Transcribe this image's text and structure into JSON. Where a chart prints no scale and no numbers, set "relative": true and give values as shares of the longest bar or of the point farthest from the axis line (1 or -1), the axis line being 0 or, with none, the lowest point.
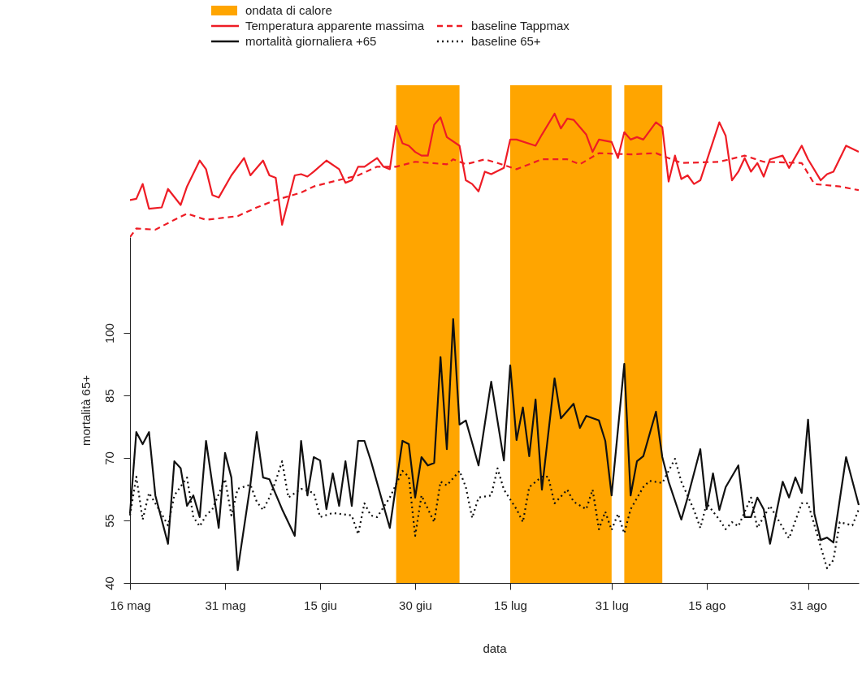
{
  "chart_data": [
    {
      "type": "line",
      "relative": true,
      "legend": "top",
      "tick_labels": false,
      "xlim": [
        "--05-16",
        "--09-08"
      ],
      "bands": [
        {
          "axis": "x",
          "from": "--06-27",
          "to": "--07-07",
          "color": "#ffa500"
        },
        {
          "axis": "x",
          "from": "--07-15",
          "to": "--07-31",
          "color": "#ffa500"
        },
        {
          "axis": "x",
          "from": "--08-02",
          "to": "--08-08",
          "color": "#ffa500"
        }
      ],
      "series": [
        {
          "name": "Temperatura apparente massima",
          "color": "#ee1c25",
          "line_style": "solid",
          "x": [
            "--05-16",
            "--05-17",
            "--05-18",
            "--05-19",
            "--05-21",
            "--05-22",
            "--05-24",
            "--05-25",
            "--05-27",
            "--05-28",
            "--05-29",
            "--05-30",
            "--06-01",
            "--06-03",
            "--06-04",
            "--06-06",
            "--06-07",
            "--06-08",
            "--06-09",
            "--06-11",
            "--06-12",
            "--06-13",
            "--06-14",
            "--06-16",
            "--06-18",
            "--06-19",
            "--06-20",
            "--06-21",
            "--06-22",
            "--06-24",
            "--06-25",
            "--06-26",
            "--06-27",
            "--06-28",
            "--06-29",
            "--06-30",
            "--07-01",
            "--07-02",
            "--07-03",
            "--07-04",
            "--07-05",
            "--07-07",
            "--07-08",
            "--07-09",
            "--07-10",
            "--07-11",
            "--07-12",
            "--07-14",
            "--07-15",
            "--07-16",
            "--07-19",
            "--07-20",
            "--07-22",
            "--07-23",
            "--07-24",
            "--07-25",
            "--07-27",
            "--07-28",
            "--07-29",
            "--07-31",
            "--08-01",
            "--08-02",
            "--08-03",
            "--08-04",
            "--08-05",
            "--08-07",
            "--08-08",
            "--08-09",
            "--08-10",
            "--08-11",
            "--08-12",
            "--08-13",
            "--08-14",
            "--08-17",
            "--08-18",
            "--08-19",
            "--08-20",
            "--08-21",
            "--08-22",
            "--08-23",
            "--08-24",
            "--08-25",
            "--08-27",
            "--08-28",
            "--08-30",
            "--08-31",
            "--09-02",
            "--09-03",
            "--09-04",
            "--09-06",
            "--09-08"
          ],
          "values": [
            0.3,
            0.31,
            0.43,
            0.23,
            0.24,
            0.39,
            0.26,
            0.41,
            0.62,
            0.55,
            0.34,
            0.32,
            0.5,
            0.64,
            0.5,
            0.62,
            0.5,
            0.48,
            0.1,
            0.5,
            0.51,
            0.49,
            0.53,
            0.62,
            0.55,
            0.44,
            0.46,
            0.57,
            0.57,
            0.64,
            0.57,
            0.55,
            0.9,
            0.76,
            0.74,
            0.69,
            0.66,
            0.66,
            0.91,
            0.97,
            0.81,
            0.74,
            0.46,
            0.43,
            0.37,
            0.53,
            0.51,
            0.56,
            0.79,
            0.79,
            0.74,
            0.83,
            1,
            0.88,
            0.96,
            0.95,
            0.83,
            0.69,
            0.79,
            0.77,
            0.64,
            0.85,
            0.79,
            0.81,
            0.79,
            0.93,
            0.89,
            0.45,
            0.66,
            0.47,
            0.5,
            0.43,
            0.46,
            0.93,
            0.82,
            0.46,
            0.53,
            0.64,
            0.53,
            0.6,
            0.49,
            0.63,
            0.66,
            0.56,
            0.74,
            0.63,
            0.46,
            0.51,
            0.53,
            0.74,
            0.69
          ]
        },
        {
          "name": "baseline Tappmax",
          "color": "#ee1c25",
          "line_style": "dashed",
          "x": [
            "--05-16",
            "--05-17",
            "--05-20",
            "--05-23",
            "--05-25",
            "--05-28",
            "--06-02",
            "--06-05",
            "--06-08",
            "--06-12",
            "--06-14",
            "--06-17",
            "--06-21",
            "--06-24",
            "--06-27",
            "--06-30",
            "--07-05",
            "--07-06",
            "--07-08",
            "--07-11",
            "--07-13",
            "--07-16",
            "--07-20",
            "--07-24",
            "--07-26",
            "--07-29",
            "--08-03",
            "--08-07",
            "--08-11",
            "--08-17",
            "--08-21",
            "--08-24",
            "--08-30",
            "--09-01",
            "--09-05",
            "--09-08"
          ],
          "values": [
            0,
            0.07,
            0.06,
            0.14,
            0.19,
            0.14,
            0.17,
            0.24,
            0.3,
            0.36,
            0.41,
            0.45,
            0.5,
            0.57,
            0.57,
            0.61,
            0.59,
            0.63,
            0.59,
            0.63,
            0.6,
            0.55,
            0.63,
            0.63,
            0.59,
            0.68,
            0.67,
            0.68,
            0.6,
            0.61,
            0.66,
            0.61,
            0.6,
            0.43,
            0.41,
            0.38
          ]
        }
      ]
    },
    {
      "type": "line",
      "legend": "top",
      "xlabel": "data",
      "ylabel": "mortalità 65+",
      "xlim": [
        "--05-16",
        "--09-08"
      ],
      "ylim": [
        40,
        123
      ],
      "yticks": [
        40,
        55,
        70,
        85,
        100
      ],
      "xticks": [
        {
          "value": "--05-16",
          "label": "16 mag"
        },
        {
          "value": "--05-31",
          "label": "31 mag"
        },
        {
          "value": "--06-15",
          "label": "15 giu"
        },
        {
          "value": "--06-30",
          "label": "30 giu"
        },
        {
          "value": "--07-15",
          "label": "15 lug"
        },
        {
          "value": "--07-31",
          "label": "31 lug"
        },
        {
          "value": "--08-15",
          "label": "15 ago"
        },
        {
          "value": "--08-31",
          "label": "31 ago"
        }
      ],
      "bands": [
        {
          "axis": "x",
          "from": "--06-27",
          "to": "--07-07",
          "label": "ondata di calore",
          "color": "#ffa500"
        },
        {
          "axis": "x",
          "from": "--07-15",
          "to": "--07-31",
          "color": "#ffa500"
        },
        {
          "axis": "x",
          "from": "--08-02",
          "to": "--08-08",
          "color": "#ffa500"
        }
      ],
      "series": [
        {
          "name": "mortalità giornaliera +65",
          "color": "#111111",
          "line_style": "solid",
          "x": [
            "--05-16",
            "--05-17",
            "--05-18",
            "--05-19",
            "--05-20",
            "--05-22",
            "--05-23",
            "--05-24",
            "--05-25",
            "--05-26",
            "--05-27",
            "--05-28",
            "--05-30",
            "--05-31",
            "--06-01",
            "--06-02",
            "--06-04",
            "--06-05",
            "--06-06",
            "--06-07",
            "--06-09",
            "--06-11",
            "--06-12",
            "--06-13",
            "--06-14",
            "--06-15",
            "--06-16",
            "--06-17",
            "--06-18",
            "--06-19",
            "--06-20",
            "--06-21",
            "--06-22",
            "--06-23",
            "--06-26",
            "--06-28",
            "--06-29",
            "--06-30",
            "--07-01",
            "--07-02",
            "--07-03",
            "--07-04",
            "--07-05",
            "--07-06",
            "--07-07",
            "--07-08",
            "--07-10",
            "--07-12",
            "--07-14",
            "--07-15",
            "--07-16",
            "--07-17",
            "--07-18",
            "--07-19",
            "--07-20",
            "--07-22",
            "--07-23",
            "--07-25",
            "--07-26",
            "--07-27",
            "--07-29",
            "--07-30",
            "--07-31",
            "--08-02",
            "--08-03",
            "--08-04",
            "--08-05",
            "--08-07",
            "--08-08",
            "--08-09",
            "--08-11",
            "--08-12",
            "--08-14",
            "--08-15",
            "--08-16",
            "--08-17",
            "--08-18",
            "--08-20",
            "--08-21",
            "--08-22",
            "--08-23",
            "--08-24",
            "--08-25",
            "--08-27",
            "--08-28",
            "--08-29",
            "--08-30",
            "--08-31",
            "--09-01",
            "--09-02",
            "--09-03",
            "--09-04",
            "--09-06",
            "--09-08"
          ],
          "values": [
            56.6,
            76.2,
            73.3,
            76.2,
            61,
            49.4,
            69.2,
            67.5,
            58.5,
            61,
            55.8,
            74.1,
            53.2,
            71.2,
            65.3,
            43.1,
            63.6,
            76.2,
            65.3,
            64.9,
            57.7,
            51.3,
            74.1,
            61,
            70.2,
            69.4,
            57.7,
            66.3,
            58.5,
            69.2,
            58.5,
            74.1,
            74.1,
            69.4,
            53.2,
            74.1,
            73.3,
            60.5,
            70.2,
            68.2,
            68.8,
            94.2,
            72.1,
            103.3,
            78,
            79,
            68.2,
            88.3,
            69.4,
            92.2,
            74.3,
            82.1,
            70.4,
            84,
            62.4,
            89.1,
            79.5,
            83,
            77.2,
            80.1,
            79,
            74.1,
            61,
            92.6,
            61,
            69.2,
            70.4,
            81.1,
            70.2,
            64.3,
            55.2,
            60.5,
            72.1,
            57.7,
            66.3,
            57.5,
            63,
            68.2,
            55.8,
            55.8,
            60.5,
            57.7,
            49.4,
            64.3,
            60.5,
            65.3,
            61.6,
            79.2,
            56.6,
            50.3,
            50.9,
            49.7,
            70.2,
            58.7
          ]
        },
        {
          "name": "baseline 65+",
          "color": "#111111",
          "line_style": "dotted",
          "x": [
            "--05-16",
            "--05-17",
            "--05-18",
            "--05-19",
            "--05-21",
            "--05-22",
            "--05-23",
            "--05-25",
            "--05-26",
            "--05-27",
            "--05-28",
            "--05-29",
            "--05-31",
            "--06-01",
            "--06-02",
            "--06-04",
            "--06-05",
            "--06-06",
            "--06-07",
            "--06-08",
            "--06-09",
            "--06-10",
            "--06-12",
            "--06-14",
            "--06-15",
            "--06-17",
            "--06-20",
            "--06-21",
            "--06-22",
            "--06-23",
            "--06-24",
            "--06-26",
            "--06-28",
            "--06-29",
            "--06-30",
            "--07-01",
            "--07-03",
            "--07-04",
            "--07-05",
            "--07-07",
            "--07-08",
            "--07-09",
            "--07-10",
            "--07-12",
            "--07-13",
            "--07-14",
            "--07-16",
            "--07-17",
            "--07-18",
            "--07-20",
            "--07-21",
            "--07-22",
            "--07-24",
            "--07-25",
            "--07-27",
            "--07-28",
            "--07-29",
            "--07-30",
            "--07-31",
            "--08-01",
            "--08-02",
            "--08-03",
            "--08-05",
            "--08-06",
            "--08-08",
            "--08-10",
            "--08-11",
            "--08-13",
            "--08-14",
            "--08-15",
            "--08-17",
            "--08-18",
            "--08-19",
            "--08-20",
            "--08-22",
            "--08-23",
            "--08-25",
            "--08-28",
            "--08-30",
            "--08-31",
            "--09-03",
            "--09-04",
            "--09-05",
            "--09-07",
            "--09-08"
          ],
          "values": [
            56.2,
            65.5,
            55.2,
            61.6,
            56.6,
            53.8,
            61,
            65.3,
            55.8,
            53.6,
            56.2,
            57.7,
            64.9,
            56.2,
            62.6,
            63.6,
            59.5,
            57.5,
            60.5,
            64.5,
            69.2,
            60.5,
            62.6,
            61.6,
            55.8,
            56.8,
            56.2,
            51.7,
            59.1,
            56.2,
            55.8,
            60.5,
            66.9,
            65.5,
            51.3,
            61,
            54.6,
            64.3,
            63.4,
            66.9,
            63,
            55.6,
            60.5,
            61,
            67.5,
            62.4,
            57.7,
            54.6,
            63,
            65.5,
            65.5,
            59.1,
            62.4,
            59.5,
            57.7,
            62.4,
            52.9,
            57.1,
            52.7,
            56.6,
            51.9,
            57.7,
            63,
            64.5,
            64,
            69.8,
            64.3,
            57.5,
            53.2,
            59.1,
            55.2,
            52.9,
            54.6,
            53.6,
            60.5,
            53.2,
            58.5,
            50.7,
            59.1,
            59.1,
            43.5,
            45.5,
            54.6,
            53.8,
            57.7
          ]
        }
      ]
    }
  ]
}
